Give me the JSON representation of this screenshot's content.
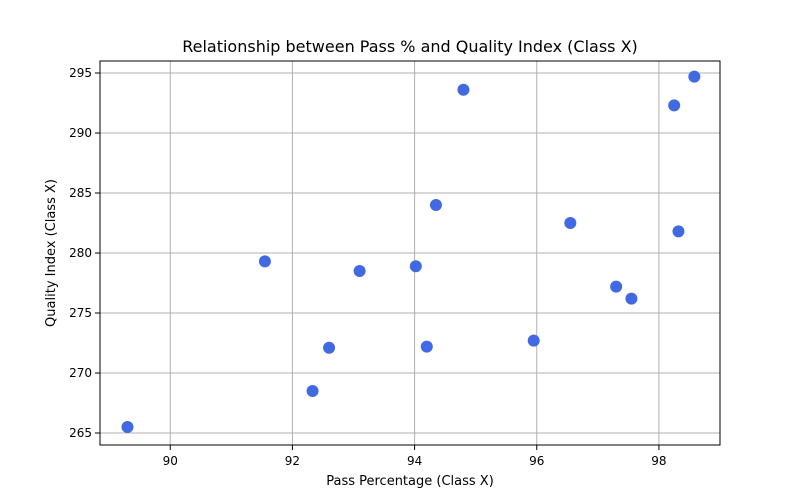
{
  "chart_data": {
    "type": "scatter",
    "title": "Relationship between Pass % and Quality Index (Class X)",
    "xlabel": "Pass Percentage (Class X)",
    "ylabel": "Quality Index (Class X)",
    "xlim": [
      88.85,
      99.0
    ],
    "ylim": [
      264.0,
      296.0
    ],
    "xticks": [
      90,
      92,
      94,
      96,
      98
    ],
    "yticks": [
      265,
      270,
      275,
      280,
      285,
      290,
      295
    ],
    "grid": true,
    "point_color": "#4169e1",
    "points": [
      {
        "x": 89.3,
        "y": 265.5
      },
      {
        "x": 91.55,
        "y": 279.3
      },
      {
        "x": 92.33,
        "y": 268.5
      },
      {
        "x": 92.6,
        "y": 272.1
      },
      {
        "x": 93.1,
        "y": 278.5
      },
      {
        "x": 94.02,
        "y": 278.9
      },
      {
        "x": 94.2,
        "y": 272.2
      },
      {
        "x": 94.35,
        "y": 284.0
      },
      {
        "x": 94.8,
        "y": 293.6
      },
      {
        "x": 95.95,
        "y": 272.7
      },
      {
        "x": 96.55,
        "y": 282.5
      },
      {
        "x": 97.3,
        "y": 277.2
      },
      {
        "x": 97.55,
        "y": 276.2
      },
      {
        "x": 98.25,
        "y": 292.3
      },
      {
        "x": 98.32,
        "y": 281.8
      },
      {
        "x": 98.58,
        "y": 294.7
      }
    ]
  }
}
